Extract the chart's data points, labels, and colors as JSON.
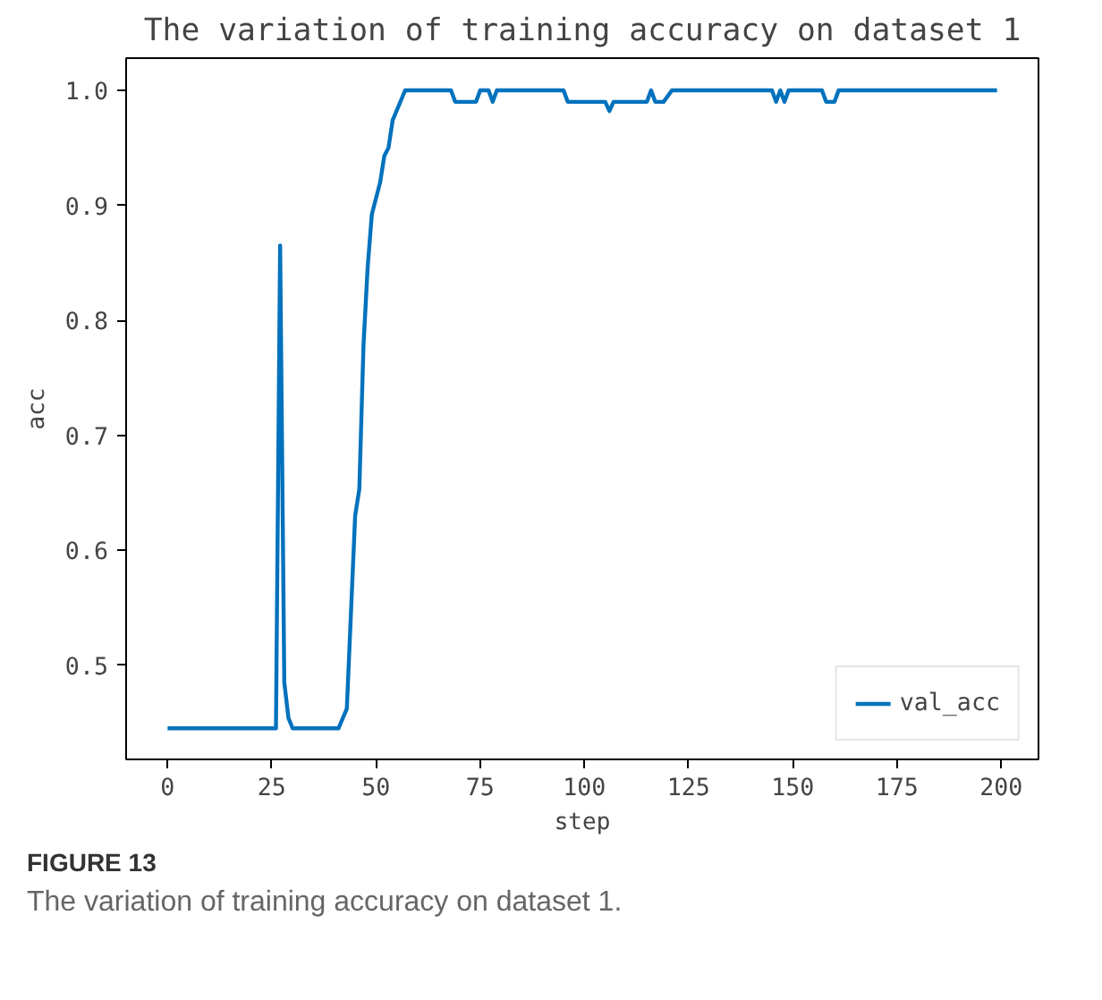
{
  "chart_data": {
    "type": "line",
    "title": "The variation of training accuracy on dataset 1",
    "xlabel": "step",
    "ylabel": "acc",
    "x": [
      0,
      26,
      27,
      28,
      29,
      30,
      41,
      43,
      45,
      46,
      47,
      48,
      49,
      51,
      52,
      53,
      54,
      57,
      68,
      69,
      74,
      75,
      77,
      78,
      79,
      95,
      96,
      105,
      106,
      107,
      115,
      116,
      117,
      119,
      121,
      145,
      146,
      147,
      148,
      149,
      157,
      158,
      160,
      161,
      199
    ],
    "series": [
      {
        "name": "val_acc",
        "color": "#0072bd",
        "values": [
          0.445,
          0.445,
          0.865,
          0.485,
          0.454,
          0.445,
          0.445,
          0.462,
          0.63,
          0.653,
          0.778,
          0.846,
          0.892,
          0.92,
          0.943,
          0.95,
          0.974,
          1.0,
          1.0,
          0.99,
          0.99,
          1.0,
          1.0,
          0.99,
          1.0,
          1.0,
          0.99,
          0.99,
          0.982,
          0.99,
          0.99,
          1.0,
          0.99,
          0.99,
          1.0,
          1.0,
          0.99,
          1.0,
          0.99,
          1.0,
          1.0,
          0.99,
          0.99,
          1.0,
          1.0
        ]
      }
    ],
    "xlim": [
      -9.95,
      208.95
    ],
    "ylim": [
      0.418,
      1.028
    ],
    "xticks": [
      0,
      25,
      50,
      75,
      100,
      125,
      150,
      175,
      200
    ],
    "yticks": [
      0.5,
      0.6,
      0.7,
      0.8,
      0.9,
      {
        "value": 1,
        "label": "1.0"
      }
    ],
    "grid": false,
    "legend": "bottom right",
    "marker": "none",
    "line_style": "solid",
    "annotations": [
      "FIGURE 13",
      "The variation of training accuracy on dataset 1."
    ]
  }
}
